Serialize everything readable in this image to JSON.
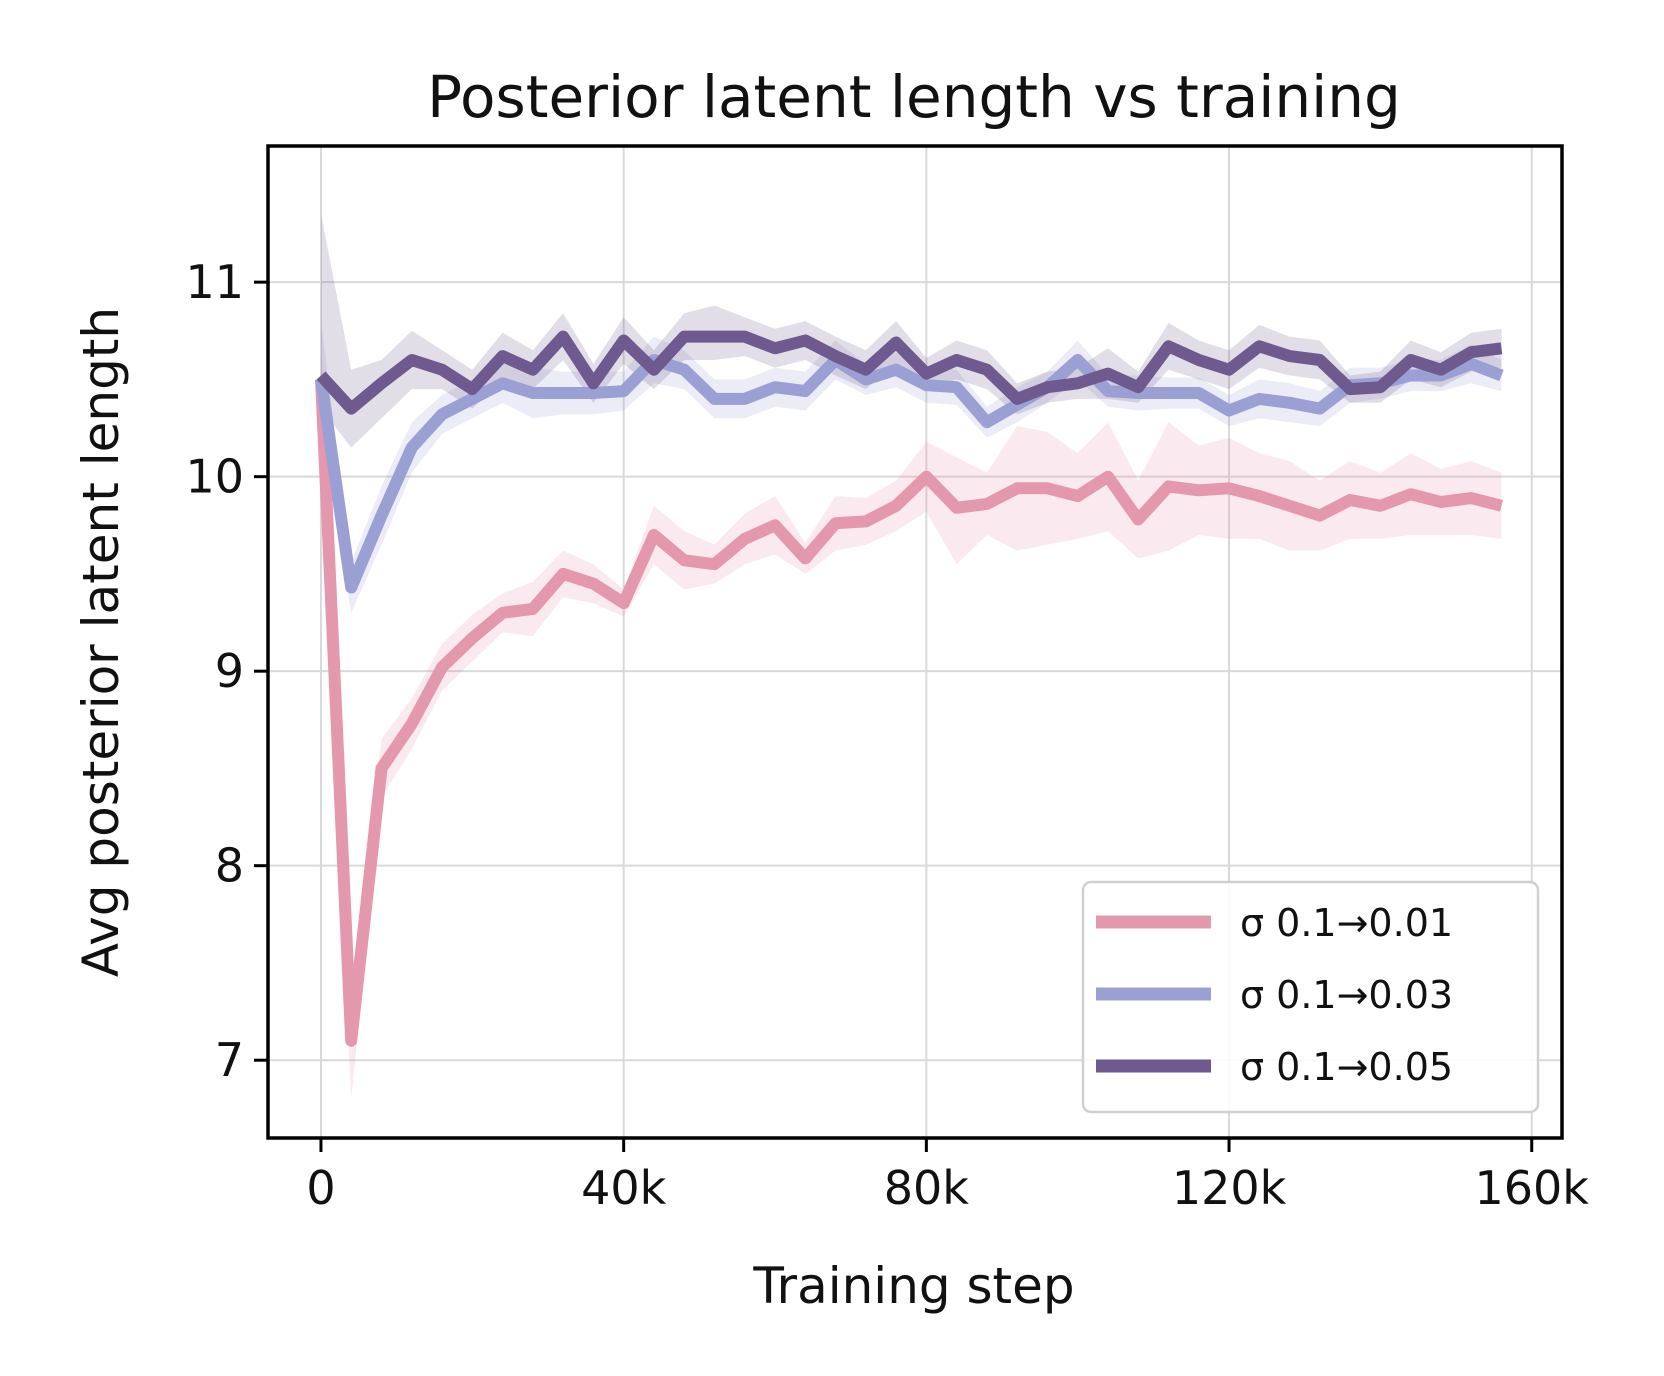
{
  "chart_data": {
    "type": "line",
    "title": "Posterior latent length vs training",
    "xlabel": "Training step",
    "ylabel": "Avg posterior latent length",
    "xlim": [
      -7000,
      164000
    ],
    "ylim": [
      6.6,
      11.7
    ],
    "x_ticks": [
      {
        "value": 0,
        "label": "0"
      },
      {
        "value": 40000,
        "label": "40k"
      },
      {
        "value": 80000,
        "label": "80k"
      },
      {
        "value": 120000,
        "label": "120k"
      },
      {
        "value": 160000,
        "label": "160k"
      }
    ],
    "y_ticks": [
      {
        "value": 7,
        "label": "7"
      },
      {
        "value": 8,
        "label": "8"
      },
      {
        "value": 9,
        "label": "9"
      },
      {
        "value": 10,
        "label": "10"
      },
      {
        "value": 11,
        "label": "11"
      }
    ],
    "grid": true,
    "legend_position": "bottom-right",
    "x": [
      0,
      4000,
      8000,
      12000,
      16000,
      20000,
      24000,
      28000,
      32000,
      36000,
      40000,
      44000,
      48000,
      52000,
      56000,
      60000,
      64000,
      68000,
      72000,
      76000,
      80000,
      84000,
      88000,
      92000,
      96000,
      100000,
      104000,
      108000,
      112000,
      116000,
      120000,
      124000,
      128000,
      132000,
      136000,
      140000,
      144000,
      148000,
      152000,
      156000
    ],
    "series": [
      {
        "name": "σ 0.1→0.01",
        "color": "#e498ae",
        "values": [
          10.5,
          7.1,
          8.5,
          8.73,
          9.02,
          9.17,
          9.3,
          9.32,
          9.5,
          9.45,
          9.35,
          9.7,
          9.57,
          9.55,
          9.68,
          9.75,
          9.58,
          9.76,
          9.77,
          9.85,
          10.0,
          9.84,
          9.86,
          9.94,
          9.94,
          9.9,
          10.0,
          9.78,
          9.95,
          9.93,
          9.94,
          9.9,
          9.85,
          9.8,
          9.88,
          9.85,
          9.91,
          9.87,
          9.89,
          9.85
        ],
        "lower": [
          10.3,
          6.8,
          8.35,
          8.6,
          8.9,
          9.05,
          9.2,
          9.18,
          9.38,
          9.35,
          9.28,
          9.55,
          9.42,
          9.45,
          9.55,
          9.6,
          9.5,
          9.62,
          9.65,
          9.72,
          9.82,
          9.55,
          9.7,
          9.62,
          9.65,
          9.68,
          9.72,
          9.58,
          9.62,
          9.7,
          9.68,
          9.68,
          9.62,
          9.62,
          9.68,
          9.68,
          9.7,
          9.7,
          9.7,
          9.68
        ],
        "upper": [
          10.7,
          7.4,
          8.65,
          8.86,
          9.14,
          9.29,
          9.4,
          9.46,
          9.62,
          9.55,
          9.42,
          9.85,
          9.72,
          9.65,
          9.81,
          9.9,
          9.66,
          9.9,
          9.89,
          9.98,
          10.18,
          10.1,
          10.02,
          10.26,
          10.23,
          10.12,
          10.28,
          9.98,
          10.28,
          10.16,
          10.2,
          10.12,
          10.08,
          9.98,
          10.08,
          10.02,
          10.12,
          10.04,
          10.08,
          10.02
        ]
      },
      {
        "name": "σ 0.1→0.03",
        "color": "#9aa0d3",
        "values": [
          10.5,
          9.43,
          9.8,
          10.15,
          10.32,
          10.4,
          10.48,
          10.43,
          10.43,
          10.43,
          10.44,
          10.6,
          10.55,
          10.4,
          10.4,
          10.46,
          10.44,
          10.6,
          10.5,
          10.55,
          10.47,
          10.46,
          10.28,
          10.37,
          10.46,
          10.6,
          10.44,
          10.43,
          10.43,
          10.43,
          10.34,
          10.4,
          10.38,
          10.35,
          10.47,
          10.48,
          10.52,
          10.52,
          10.58,
          10.52
        ],
        "lower": [
          10.2,
          9.3,
          9.65,
          10.02,
          10.22,
          10.3,
          10.38,
          10.3,
          10.32,
          10.32,
          10.34,
          10.48,
          10.45,
          10.3,
          10.3,
          10.36,
          10.34,
          10.5,
          10.42,
          10.46,
          10.38,
          10.37,
          10.2,
          10.28,
          10.38,
          10.5,
          10.36,
          10.34,
          10.35,
          10.35,
          10.26,
          10.3,
          10.28,
          10.26,
          10.38,
          10.4,
          10.44,
          10.44,
          10.48,
          10.44
        ],
        "upper": [
          10.8,
          9.56,
          9.95,
          10.28,
          10.42,
          10.5,
          10.58,
          10.56,
          10.54,
          10.54,
          10.54,
          10.72,
          10.65,
          10.5,
          10.5,
          10.56,
          10.54,
          10.7,
          10.58,
          10.64,
          10.56,
          10.55,
          10.36,
          10.46,
          10.54,
          10.7,
          10.52,
          10.52,
          10.51,
          10.51,
          10.42,
          10.5,
          10.48,
          10.44,
          10.56,
          10.56,
          10.6,
          10.6,
          10.68,
          10.6
        ]
      },
      {
        "name": "σ 0.1→0.05",
        "color": "#6e5a8e",
        "values": [
          10.52,
          10.35,
          10.48,
          10.6,
          10.55,
          10.45,
          10.62,
          10.55,
          10.72,
          10.48,
          10.7,
          10.55,
          10.72,
          10.72,
          10.72,
          10.66,
          10.7,
          10.62,
          10.55,
          10.69,
          10.53,
          10.6,
          10.55,
          10.4,
          10.46,
          10.48,
          10.53,
          10.46,
          10.67,
          10.6,
          10.55,
          10.67,
          10.62,
          10.6,
          10.45,
          10.46,
          10.6,
          10.55,
          10.64,
          10.66
        ],
        "lower": [
          10.35,
          10.15,
          10.3,
          10.45,
          10.45,
          10.35,
          10.5,
          10.45,
          10.6,
          10.38,
          10.58,
          10.45,
          10.6,
          10.6,
          10.62,
          10.56,
          10.6,
          10.52,
          10.45,
          10.58,
          10.45,
          10.5,
          10.45,
          10.32,
          10.38,
          10.4,
          10.4,
          10.38,
          10.55,
          10.5,
          10.45,
          10.56,
          10.52,
          10.5,
          10.38,
          10.38,
          10.5,
          10.46,
          10.54,
          10.56
        ],
        "upper": [
          11.35,
          10.55,
          10.6,
          10.75,
          10.65,
          10.55,
          10.74,
          10.65,
          10.84,
          10.58,
          10.82,
          10.65,
          10.84,
          10.88,
          10.82,
          10.76,
          10.8,
          10.72,
          10.65,
          10.8,
          10.61,
          10.7,
          10.65,
          10.48,
          10.54,
          10.56,
          10.66,
          10.54,
          10.79,
          10.7,
          10.65,
          10.78,
          10.72,
          10.7,
          10.52,
          10.54,
          10.7,
          10.64,
          10.74,
          10.76
        ]
      }
    ]
  }
}
